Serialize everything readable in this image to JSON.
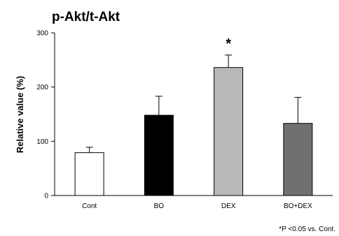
{
  "chart_data": {
    "type": "bar",
    "title": "p-Akt/t-Akt",
    "xlabel": "",
    "ylabel": "Relative value (%)",
    "ylim": [
      0,
      300
    ],
    "yticks": [
      "0",
      "100",
      "200",
      "300"
    ],
    "categories": [
      "Cont",
      "BO",
      "DEX",
      "BO+DEX"
    ],
    "values": [
      79,
      148,
      236,
      133
    ],
    "errors": [
      10,
      35,
      23,
      48
    ],
    "bar_colors": [
      "#ffffff",
      "#000000",
      "#b9b9b9",
      "#707070"
    ],
    "significance": [
      "",
      "",
      "*",
      ""
    ],
    "footnote": "*P <0.05 vs. Cont."
  }
}
